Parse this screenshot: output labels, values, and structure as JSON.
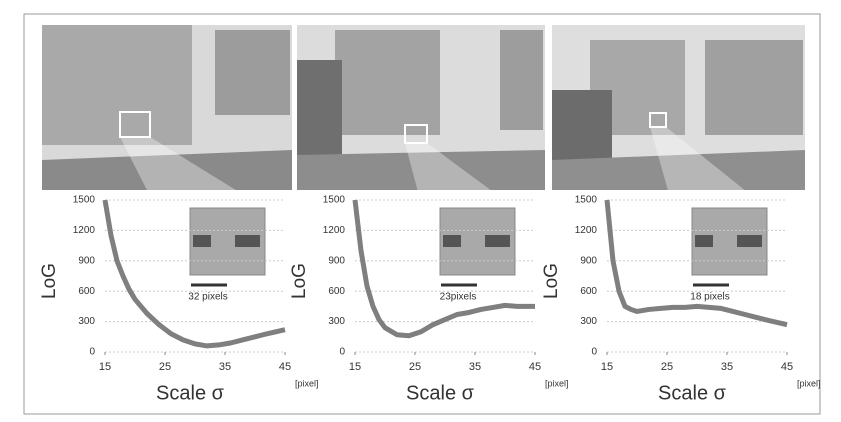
{
  "chart_data": [
    {
      "type": "line",
      "y_label": "LoG",
      "x_label": "Scale σ",
      "x_unit": "[pixel]",
      "annotation": "32 pixels",
      "x": [
        15,
        16,
        17,
        18,
        19,
        20,
        22,
        24,
        26,
        28,
        30,
        32,
        34,
        36,
        38,
        40,
        42,
        45
      ],
      "series": [
        {
          "color": "#7f7f7f",
          "values": [
            1500,
            1150,
            900,
            750,
            620,
            520,
            380,
            270,
            180,
            120,
            80,
            60,
            70,
            90,
            120,
            150,
            180,
            220
          ]
        }
      ],
      "xlim": [
        15,
        45
      ],
      "xticks": [
        15,
        25,
        35,
        45
      ],
      "ylim": [
        0,
        1500
      ],
      "yticks": [
        0,
        300,
        600,
        900,
        1200,
        1500
      ],
      "grid": true
    },
    {
      "type": "line",
      "y_label": "LoG",
      "x_label": "Scale σ",
      "x_unit": "[pixel]",
      "annotation": "23pixels",
      "x": [
        15,
        16,
        17,
        18,
        19,
        20,
        22,
        24,
        26,
        28,
        30,
        32,
        34,
        36,
        38,
        40,
        42,
        45
      ],
      "series": [
        {
          "color": "#7f7f7f",
          "values": [
            1500,
            1000,
            650,
            450,
            320,
            240,
            170,
            160,
            200,
            270,
            320,
            370,
            390,
            420,
            440,
            460,
            450,
            450
          ]
        }
      ],
      "xlim": [
        15,
        45
      ],
      "xticks": [
        15,
        25,
        35,
        45
      ],
      "ylim": [
        0,
        1500
      ],
      "yticks": [
        0,
        300,
        600,
        900,
        1200,
        1500
      ],
      "grid": true
    },
    {
      "type": "line",
      "y_label": "LoG",
      "x_label": "Scale σ",
      "x_unit": "[pixel]",
      "annotation": "18 pixels",
      "x": [
        15,
        16,
        17,
        18,
        19,
        20,
        22,
        24,
        26,
        28,
        30,
        32,
        34,
        36,
        38,
        40,
        42,
        45
      ],
      "series": [
        {
          "color": "#7f7f7f",
          "values": [
            1500,
            900,
            600,
            450,
            420,
            400,
            420,
            430,
            440,
            440,
            450,
            440,
            430,
            400,
            370,
            340,
            310,
            270
          ]
        }
      ],
      "xlim": [
        15,
        45
      ],
      "xticks": [
        15,
        25,
        35,
        45
      ],
      "ylim": [
        0,
        1500
      ],
      "yticks": [
        0,
        300,
        600,
        900,
        1200,
        1500
      ],
      "grid": true
    }
  ]
}
